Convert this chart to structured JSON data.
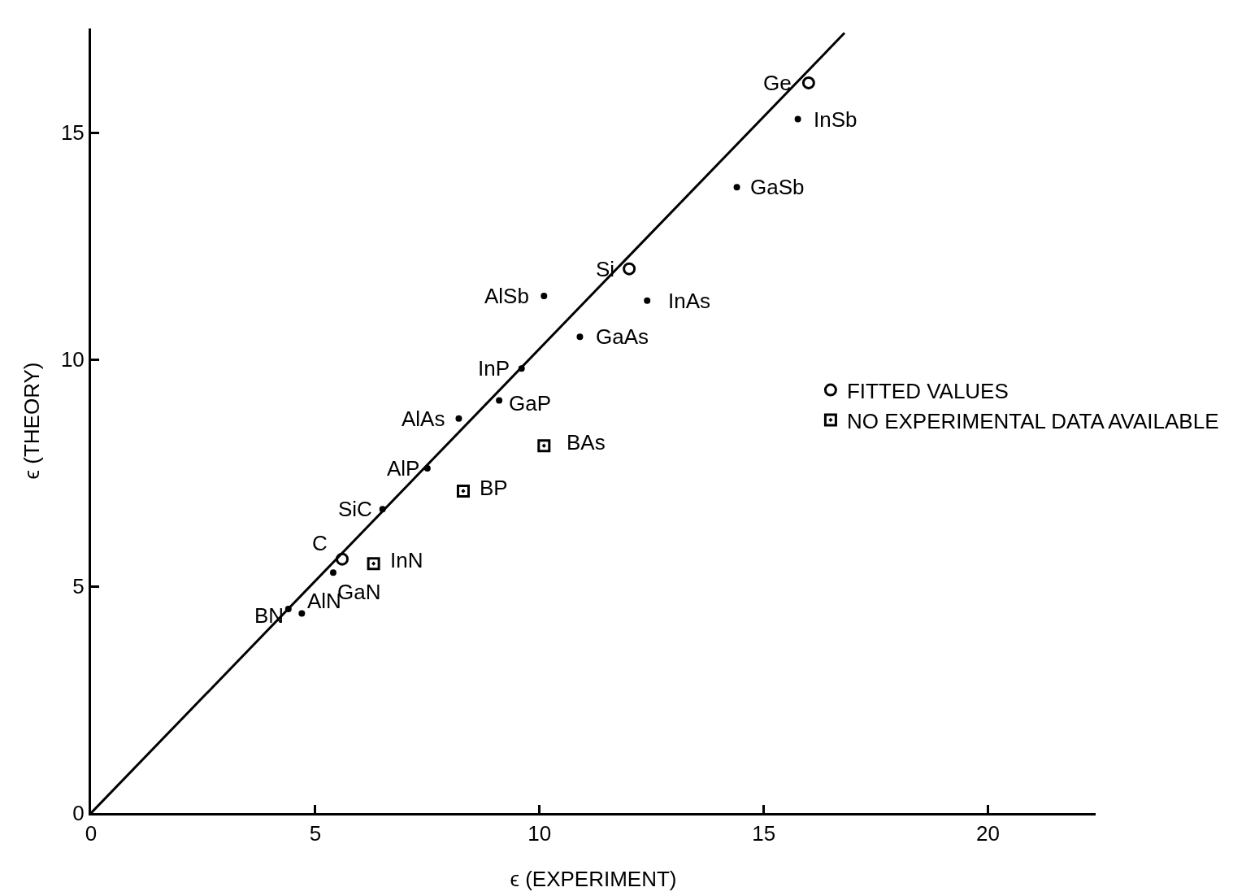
{
  "chart_data": {
    "type": "scatter",
    "xlabel": "ϵ (EXPERIMENT)",
    "ylabel": "ϵ (THEORY)",
    "xlim": [
      0,
      22.4
    ],
    "ylim": [
      0,
      17.3
    ],
    "xticks": [
      0,
      5,
      10,
      15,
      20
    ],
    "yticks": [
      0,
      5,
      10,
      15
    ],
    "grid": false,
    "legend": "right",
    "series": [
      {
        "name": "FITTED VALUES",
        "color": "#000000",
        "marker": "circle",
        "x": [
          16.0,
          12.0,
          5.6
        ],
        "values": [
          16.1,
          12.0,
          5.6
        ]
      },
      {
        "color": "#000000",
        "marker": "circle",
        "x": [
          15.76,
          14.4,
          12.4,
          10.1,
          10.9,
          9.6,
          9.1,
          8.2,
          7.5,
          6.5,
          5.4,
          4.4,
          4.7
        ],
        "values": [
          15.3,
          13.8,
          11.3,
          11.4,
          10.5,
          9.8,
          9.1,
          8.7,
          7.6,
          6.7,
          5.3,
          4.5,
          4.4
        ]
      },
      {
        "name": "NO EXPERIMENTAL DATA AVAILABLE",
        "color": "#000000",
        "marker": "square",
        "x": [
          10.1,
          8.3,
          6.3
        ],
        "values": [
          8.1,
          7.1,
          5.5
        ]
      },
      {
        "type": "line",
        "color": "#000000",
        "line_style": "solid",
        "marker": "none",
        "x": [
          0,
          16.8
        ],
        "values": [
          0,
          17.2
        ]
      }
    ],
    "annotations": [
      {
        "text": "Ge",
        "x": 16.0,
        "y": 16.1
      },
      {
        "text": "Si",
        "x": 12.0,
        "y": 12.0
      },
      {
        "text": "C",
        "x": 5.6,
        "y": 5.6
      },
      {
        "text": "InSb",
        "x": 15.76,
        "y": 15.3
      },
      {
        "text": "GaSb",
        "x": 14.4,
        "y": 13.8
      },
      {
        "text": "InAs",
        "x": 12.4,
        "y": 11.3
      },
      {
        "text": "AlSb",
        "x": 10.1,
        "y": 11.4
      },
      {
        "text": "GaAs",
        "x": 10.9,
        "y": 10.5
      },
      {
        "text": "InP",
        "x": 9.6,
        "y": 9.8
      },
      {
        "text": "GaP",
        "x": 9.1,
        "y": 9.1
      },
      {
        "text": "AlAs",
        "x": 8.2,
        "y": 8.7
      },
      {
        "text": "AlP",
        "x": 7.5,
        "y": 7.6
      },
      {
        "text": "SiC",
        "x": 6.5,
        "y": 6.7
      },
      {
        "text": "GaN",
        "x": 5.4,
        "y": 5.3
      },
      {
        "text": "BN",
        "x": 4.4,
        "y": 4.5
      },
      {
        "text": "AlN",
        "x": 4.7,
        "y": 4.4
      },
      {
        "text": "BAs",
        "x": 10.1,
        "y": 8.1
      },
      {
        "text": "BP",
        "x": 8.3,
        "y": 7.1
      },
      {
        "text": "InN",
        "x": 6.3,
        "y": 5.5
      }
    ]
  }
}
